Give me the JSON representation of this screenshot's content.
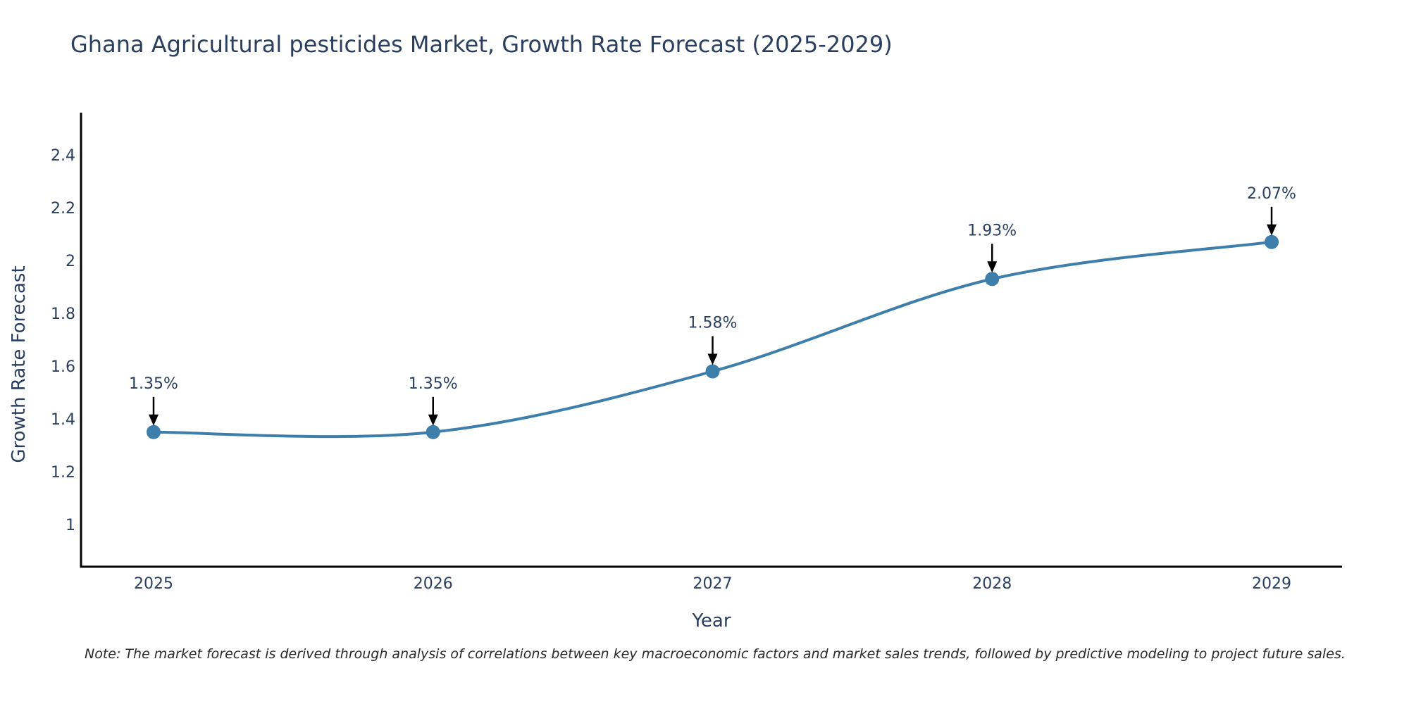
{
  "colors": {
    "line": "#3d7eab",
    "marker": "#3d7eab",
    "axis": "#000000",
    "text": "#2a3f5f",
    "arrow": "#000000"
  },
  "chart_data": {
    "type": "line",
    "title": "Ghana Agricultural pesticides Market, Growth Rate Forecast (2025-2029)",
    "xlabel": "Year",
    "ylabel": "Growth Rate Forecast",
    "categories": [
      "2025",
      "2026",
      "2027",
      "2028",
      "2029"
    ],
    "series": [
      {
        "name": "Growth Rate Forecast",
        "values": [
          1.35,
          1.35,
          1.58,
          1.93,
          2.07
        ]
      }
    ],
    "data_labels": [
      "1.35%",
      "1.35%",
      "1.58%",
      "1.93%",
      "2.07%"
    ],
    "ylim": [
      0.84,
      2.56
    ],
    "yticks": [
      1,
      1.2,
      1.4,
      1.6,
      1.8,
      2,
      2.2,
      2.4
    ],
    "ytick_labels": [
      "1",
      "1.2",
      "1.4",
      "1.6",
      "1.8",
      "2",
      "2.2",
      "2.4"
    ],
    "grid": false,
    "line_shape": "spline",
    "markers": true
  },
  "note": "Note: The market forecast is derived through analysis of correlations between key macroeconomic factors and market sales trends, followed by predictive modeling to project future sales."
}
